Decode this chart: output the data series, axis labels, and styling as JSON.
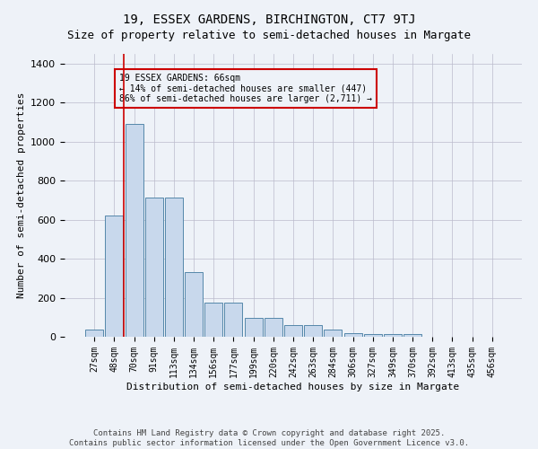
{
  "title1": "19, ESSEX GARDENS, BIRCHINGTON, CT7 9TJ",
  "title2": "Size of property relative to semi-detached houses in Margate",
  "xlabel": "Distribution of semi-detached houses by size in Margate",
  "ylabel": "Number of semi-detached properties",
  "categories": [
    "27sqm",
    "48sqm",
    "70sqm",
    "91sqm",
    "113sqm",
    "134sqm",
    "156sqm",
    "177sqm",
    "199sqm",
    "220sqm",
    "242sqm",
    "263sqm",
    "284sqm",
    "306sqm",
    "327sqm",
    "349sqm",
    "370sqm",
    "392sqm",
    "413sqm",
    "435sqm",
    "456sqm"
  ],
  "values": [
    35,
    620,
    1090,
    715,
    715,
    330,
    175,
    175,
    95,
    95,
    60,
    60,
    35,
    20,
    15,
    15,
    15,
    0,
    0,
    0,
    0
  ],
  "bar_color": "#c8d8ec",
  "bar_edge_color": "#5588aa",
  "grid_color": "#bbbbcc",
  "bg_color": "#eef2f8",
  "vline_color": "#cc0000",
  "annotation_text": "19 ESSEX GARDENS: 66sqm\n← 14% of semi-detached houses are smaller (447)\n86% of semi-detached houses are larger (2,711) →",
  "annotation_box_color": "#cc0000",
  "footer_text": "Contains HM Land Registry data © Crown copyright and database right 2025.\nContains public sector information licensed under the Open Government Licence v3.0.",
  "ylim": [
    0,
    1450
  ],
  "title_fontsize": 10,
  "subtitle_fontsize": 9,
  "ylabel_fontsize": 8,
  "xlabel_fontsize": 8,
  "tick_fontsize": 7,
  "annotation_fontsize": 7,
  "footer_fontsize": 6.5
}
